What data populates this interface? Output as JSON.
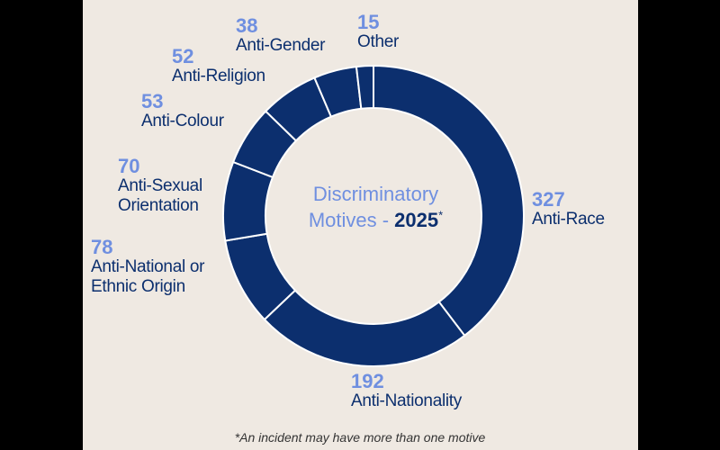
{
  "chart_data": {
    "type": "pie",
    "variant": "donut",
    "title_line1": "Discriminatory",
    "title_line2_prefix": "Motives - ",
    "title_year": "2025",
    "title_marker": "*",
    "slices": [
      {
        "label": "Anti-Race",
        "value": 327
      },
      {
        "label": "Anti-Nationality",
        "value": 192
      },
      {
        "label": "Anti-National or\nEthnic Origin",
        "value": 78
      },
      {
        "label": "Anti-Sexual\nOrientation",
        "value": 70
      },
      {
        "label": "Anti-Colour",
        "value": 53
      },
      {
        "label": "Anti-Religion",
        "value": 52
      },
      {
        "label": "Anti-Gender",
        "value": 38
      },
      {
        "label": "Other",
        "value": 15
      }
    ],
    "footnote": "*An incident may have more than one motive"
  },
  "colors": {
    "slice": "#0c2f6e",
    "separator": "#ffffff",
    "value_text": "#6f8fe0",
    "label_text": "#0c2f6e",
    "panel_bg": "#efe9e2"
  }
}
